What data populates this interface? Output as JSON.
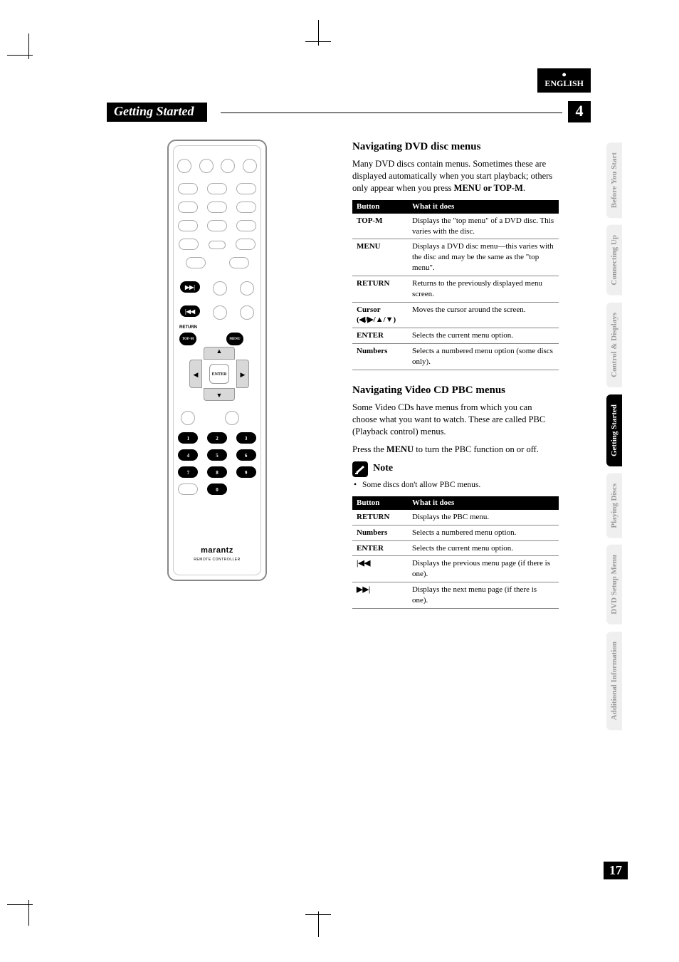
{
  "language_tab": "ENGLISH",
  "header": {
    "title": "Getting Started",
    "chapter_number": "4"
  },
  "remote": {
    "brand": "marantz",
    "subtitle": "REMOTE CONTROLLER",
    "labels": {
      "return": "RETURN",
      "topm": "TOP-M",
      "menu": "MENU",
      "enter": "ENTER",
      "fwd": "▶▶|",
      "rew": "|◀◀"
    },
    "numbers": [
      "1",
      "2",
      "3",
      "4",
      "5",
      "6",
      "7",
      "8",
      "9",
      "0"
    ]
  },
  "section1": {
    "title": "Navigating DVD disc menus",
    "intro": "Many DVD discs contain menus. Sometimes these are displayed automatically when you start playback; others only appear when you press ",
    "intro_buttons": "MENU or TOP-M",
    "intro_end": ".",
    "table": {
      "headers": [
        "Button",
        "What it does"
      ],
      "rows": [
        [
          "TOP-M",
          "Displays the \"top menu\" of a DVD disc. This varies with the disc."
        ],
        [
          "MENU",
          "Displays a DVD disc menu—this varies with the disc and may be the same as the \"top menu\"."
        ],
        [
          "RETURN",
          "Returns to the previously displayed menu screen."
        ],
        [
          "Cursor\n(◀/▶/▲/▼)",
          "Moves the cursor around the screen."
        ],
        [
          "ENTER",
          "Selects the current menu option."
        ],
        [
          "Numbers",
          "Selects a numbered menu option (some discs only)."
        ]
      ]
    }
  },
  "section2": {
    "title": "Navigating Video CD PBC menus",
    "p1": "Some Video CDs have menus from which you can choose what you want to watch. These are called PBC (Playback control) menus.",
    "p2_pre": "Press the ",
    "p2_btn": "MENU",
    "p2_post": " to turn the PBC function on or off.",
    "note_label": "Note",
    "note_text": "Some discs don't allow PBC menus.",
    "table": {
      "headers": [
        "Button",
        "What it does"
      ],
      "rows": [
        [
          "RETURN",
          "Displays the PBC menu."
        ],
        [
          "Numbers",
          "Selects a numbered menu option."
        ],
        [
          "ENTER",
          "Selects the current menu option."
        ],
        [
          "ICON_PREV",
          "Displays the previous menu page (if there is one)."
        ],
        [
          "ICON_NEXT",
          "Displays the next menu page (if there is one)."
        ]
      ]
    }
  },
  "side_tabs": [
    {
      "label": "Before You Start",
      "active": false
    },
    {
      "label": "Connecting Up",
      "active": false
    },
    {
      "label": "Control & Displays",
      "active": false
    },
    {
      "label": "Getting Started",
      "active": true
    },
    {
      "label": "Playing Discs",
      "active": false
    },
    {
      "label": "DVD Setup Menu",
      "active": false
    },
    {
      "label": "Additional Information",
      "active": false
    }
  ],
  "page_number": "17",
  "colors": {
    "black": "#000000",
    "tab_gray_bg": "#efefef",
    "tab_gray_text": "#9a9a9a",
    "border_gray": "#888888"
  }
}
